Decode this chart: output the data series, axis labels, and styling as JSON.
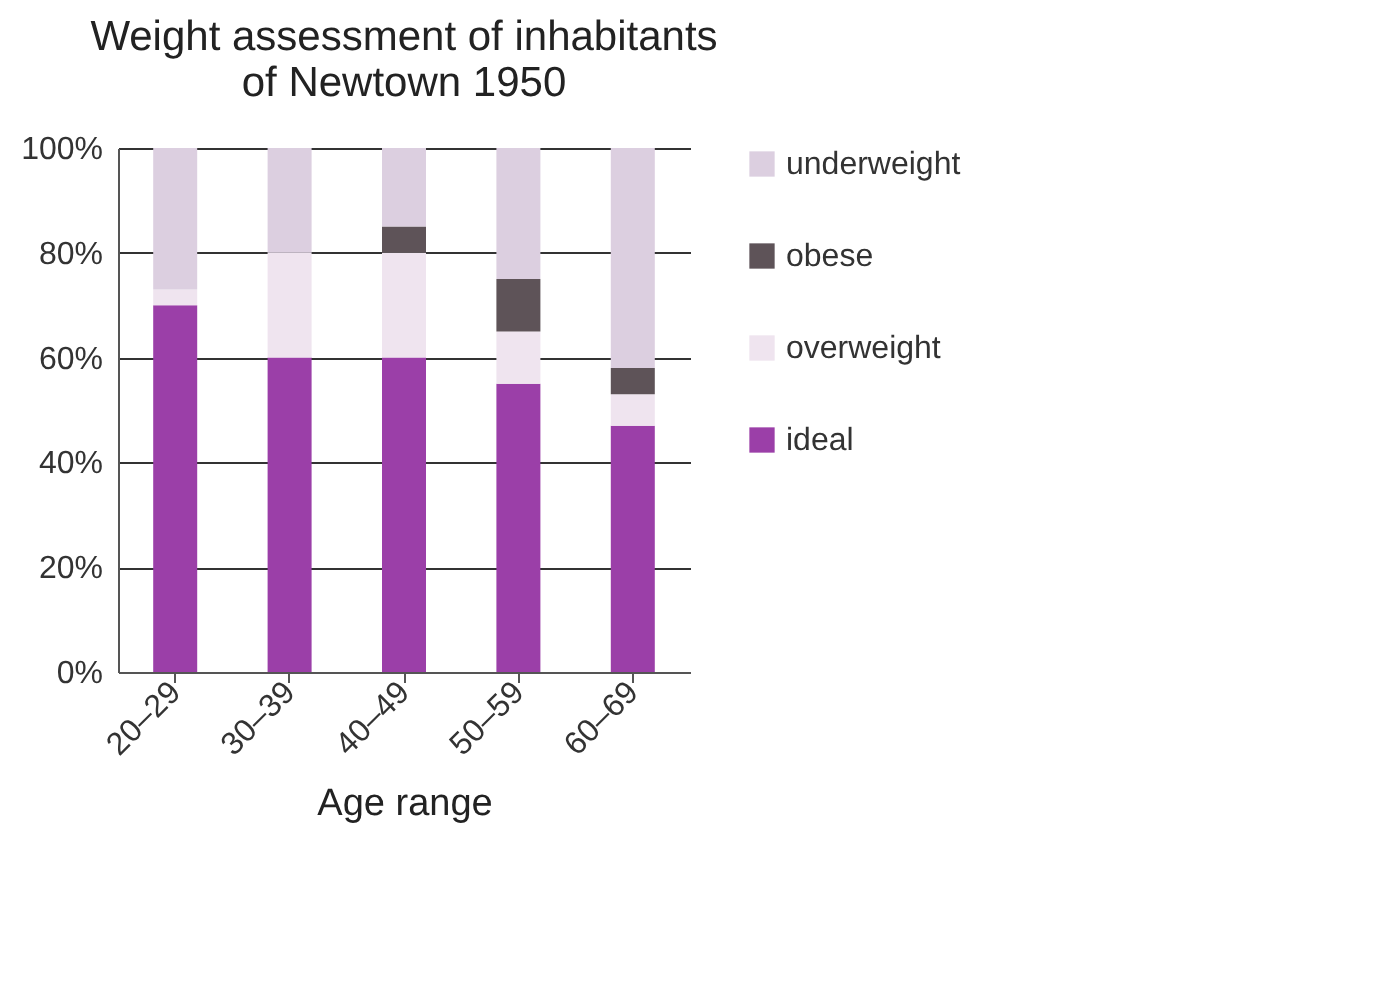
{
  "chart_data": {
    "type": "bar",
    "stacked": true,
    "title": "Weight assessment of inhabitants of Newtown 1950",
    "xlabel": "Age range",
    "categories": [
      "20–29",
      "30–39",
      "40–49",
      "50–59",
      "60–69"
    ],
    "series": [
      {
        "name": "ideal",
        "color": "#9b3fa8",
        "values": [
          70,
          60,
          60,
          55,
          47
        ]
      },
      {
        "name": "overweight",
        "color": "#efe4ef",
        "values": [
          3,
          20,
          20,
          10,
          6
        ]
      },
      {
        "name": "obese",
        "color": "#5e5358",
        "values": [
          0,
          0,
          5,
          10,
          5
        ]
      },
      {
        "name": "underweight",
        "color": "#dccfe0",
        "values": [
          27,
          20,
          15,
          25,
          42
        ]
      }
    ],
    "ylim": [
      0,
      100
    ],
    "yticks": [
      {
        "value": 0,
        "label": "0%"
      },
      {
        "value": 20,
        "label": "20%"
      },
      {
        "value": 40,
        "label": "40%"
      },
      {
        "value": 60,
        "label": "60%"
      },
      {
        "value": 80,
        "label": "80%"
      },
      {
        "value": 100,
        "label": "100%"
      }
    ],
    "grid": "y",
    "legend": "right"
  }
}
